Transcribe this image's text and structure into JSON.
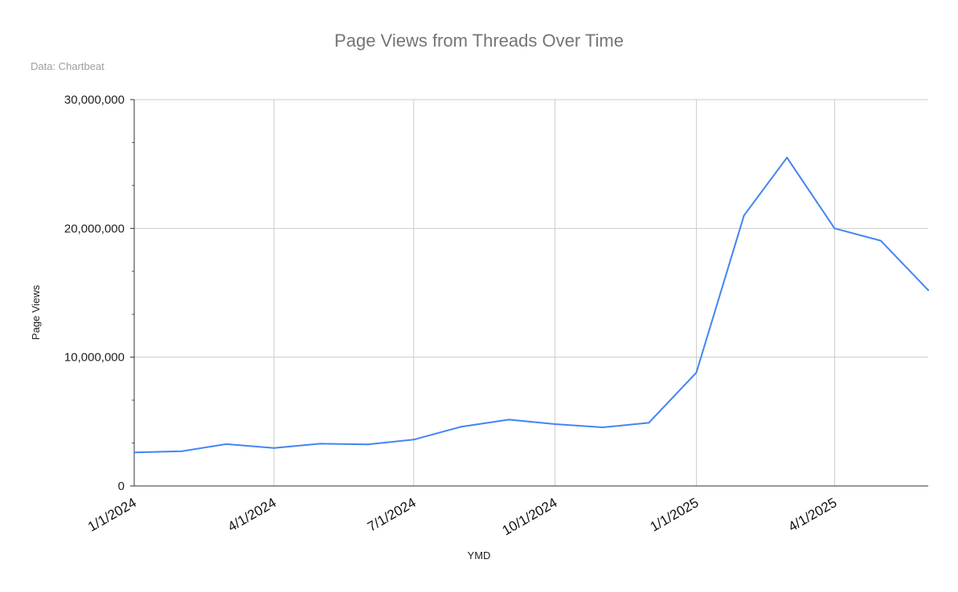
{
  "chart_data": {
    "type": "line",
    "title": "Page Views from Threads Over Time",
    "subtitle": "Data: Chartbeat",
    "xlabel": "YMD",
    "ylabel": "Page Views",
    "ylim": [
      0,
      30000000
    ],
    "xlim": [
      "2024-01-01",
      "2025-06-01"
    ],
    "y_ticks": [
      {
        "value": 0,
        "label": "0"
      },
      {
        "value": 10000000,
        "label": "10,000,000"
      },
      {
        "value": 20000000,
        "label": "20,000,000"
      },
      {
        "value": 30000000,
        "label": "30,000,000"
      }
    ],
    "x_ticks": [
      {
        "date": "2024-01-01",
        "label": "1/1/2024"
      },
      {
        "date": "2024-04-01",
        "label": "4/1/2024"
      },
      {
        "date": "2024-07-01",
        "label": "7/1/2024"
      },
      {
        "date": "2024-10-01",
        "label": "10/1/2024"
      },
      {
        "date": "2025-01-01",
        "label": "1/1/2025"
      },
      {
        "date": "2025-04-01",
        "label": "4/1/2025"
      }
    ],
    "grid": true,
    "series": [
      {
        "color": "#4285f4",
        "points": [
          {
            "x": "2024-01-01",
            "y": 2600000
          },
          {
            "x": "2024-02-01",
            "y": 2700000
          },
          {
            "x": "2024-03-01",
            "y": 3250000
          },
          {
            "x": "2024-04-01",
            "y": 2950000
          },
          {
            "x": "2024-05-01",
            "y": 3280000
          },
          {
            "x": "2024-06-01",
            "y": 3230000
          },
          {
            "x": "2024-07-01",
            "y": 3600000
          },
          {
            "x": "2024-08-01",
            "y": 4600000
          },
          {
            "x": "2024-09-01",
            "y": 5150000
          },
          {
            "x": "2024-10-01",
            "y": 4800000
          },
          {
            "x": "2024-11-01",
            "y": 4550000
          },
          {
            "x": "2024-12-01",
            "y": 4900000
          },
          {
            "x": "2025-01-01",
            "y": 8800000
          },
          {
            "x": "2025-02-01",
            "y": 21000000
          },
          {
            "x": "2025-03-01",
            "y": 25500000
          },
          {
            "x": "2025-04-01",
            "y": 20000000
          },
          {
            "x": "2025-05-01",
            "y": 19050000
          },
          {
            "x": "2025-06-01",
            "y": 15200000
          }
        ]
      }
    ]
  }
}
